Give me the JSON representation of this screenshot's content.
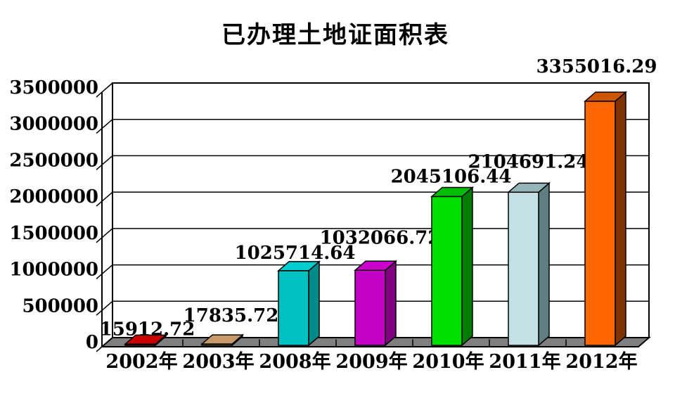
{
  "page": {
    "background_color": "#FFFFFF"
  },
  "chart_data": {
    "type": "bar",
    "style": "3d-column",
    "title": "已办理土地证面积表",
    "xlabel": "",
    "ylabel": "",
    "categories": [
      "2002年",
      "2003年",
      "2008年",
      "2009年",
      "2010年",
      "2011年",
      "2012年"
    ],
    "values": [
      15912.72,
      17835.72,
      1025714.64,
      1032066.72,
      2045106.44,
      2104691.24,
      3355016.29
    ],
    "data_labels": [
      "15912.72",
      "17835.72",
      "1025714.64",
      "1032066.72",
      "2045106.44",
      "2104691.24",
      "3355016.29"
    ],
    "ylim": [
      0,
      3500000
    ],
    "ytick_step": 500000,
    "ytick_labels": [
      "0",
      "500000",
      "1000000",
      "1500000",
      "2000000",
      "2500000",
      "3000000",
      "3500000"
    ],
    "grid": true,
    "legend": "none",
    "wall_color": "#FFFFFF",
    "floor_color": "#7F7F7F",
    "line_color": "#000000",
    "bar_colors": [
      {
        "front": "#CC0000",
        "top": "#C90000",
        "side": "#800000"
      },
      {
        "front": "#D2A678",
        "top": "#C89A68",
        "side": "#8F6B45"
      },
      {
        "front": "#00C0C0",
        "top": "#00CDCD",
        "side": "#008B8B"
      },
      {
        "front": "#C400C4",
        "top": "#CC00CC",
        "side": "#800080"
      },
      {
        "front": "#00E000",
        "top": "#00BE00",
        "side": "#007C00"
      },
      {
        "front": "#C4E0E2",
        "top": "#93B5B8",
        "side": "#5F7E82"
      },
      {
        "front": "#FF6600",
        "top": "#CC5500",
        "side": "#7F3300"
      }
    ]
  }
}
